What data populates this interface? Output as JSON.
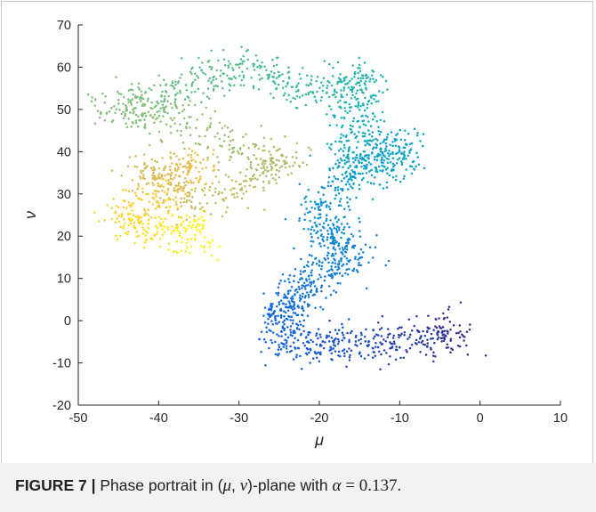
{
  "figure": {
    "caption_label": "FIGURE 7 |",
    "caption_pre": " Phase portrait in (",
    "caption_mu": "μ",
    "caption_comma": ", ",
    "caption_nu": "ν",
    "caption_mid": ")-plane with ",
    "caption_alpha": "α",
    "caption_eq": " = 0.137.",
    "caption_post": "."
  },
  "chart_data": {
    "type": "scatter",
    "title": "",
    "xlabel": "μ",
    "ylabel": "ν",
    "xlim": [
      -50,
      10
    ],
    "ylim": [
      -20,
      70
    ],
    "xticks": [
      "-50",
      "-40",
      "-30",
      "-20",
      "-10",
      "0",
      "10"
    ],
    "yticks": [
      "-20",
      "-10",
      "0",
      "10",
      "20",
      "30",
      "40",
      "50",
      "60",
      "70"
    ],
    "colormap": "parula",
    "color_by": "time",
    "grid": false,
    "legend": "none",
    "trajectory_waypoints": [
      {
        "x": -3,
        "y": -4
      },
      {
        "x": -5,
        "y": -3
      },
      {
        "x": -9,
        "y": -5
      },
      {
        "x": -13,
        "y": -6
      },
      {
        "x": -17,
        "y": -5
      },
      {
        "x": -21,
        "y": -6
      },
      {
        "x": -25,
        "y": -5
      },
      {
        "x": -24,
        "y": 0
      },
      {
        "x": -25,
        "y": 3
      },
      {
        "x": -22,
        "y": 6
      },
      {
        "x": -21,
        "y": 10
      },
      {
        "x": -18,
        "y": 13
      },
      {
        "x": -16,
        "y": 15
      },
      {
        "x": -19,
        "y": 19
      },
      {
        "x": -19,
        "y": 23
      },
      {
        "x": -20,
        "y": 27
      },
      {
        "x": -17,
        "y": 33
      },
      {
        "x": -14,
        "y": 38
      },
      {
        "x": -12,
        "y": 42
      },
      {
        "x": -9,
        "y": 40
      },
      {
        "x": -12,
        "y": 34
      },
      {
        "x": -17,
        "y": 40
      },
      {
        "x": -15,
        "y": 47
      },
      {
        "x": -16,
        "y": 53
      },
      {
        "x": -14,
        "y": 58
      },
      {
        "x": -19,
        "y": 54
      },
      {
        "x": -24,
        "y": 56
      },
      {
        "x": -28,
        "y": 60
      },
      {
        "x": -33,
        "y": 58
      },
      {
        "x": -38,
        "y": 53
      },
      {
        "x": -42,
        "y": 52
      },
      {
        "x": -46,
        "y": 50
      },
      {
        "x": -40,
        "y": 49
      },
      {
        "x": -33,
        "y": 43
      },
      {
        "x": -27,
        "y": 37
      },
      {
        "x": -24,
        "y": 38
      },
      {
        "x": -30,
        "y": 31
      },
      {
        "x": -36,
        "y": 28
      },
      {
        "x": -42,
        "y": 36
      },
      {
        "x": -38,
        "y": 34
      },
      {
        "x": -35,
        "y": 36
      },
      {
        "x": -40,
        "y": 29
      },
      {
        "x": -44,
        "y": 25
      },
      {
        "x": -42,
        "y": 21
      },
      {
        "x": -37,
        "y": 22
      },
      {
        "x": -35,
        "y": 19
      }
    ],
    "point_count": 2600
  }
}
